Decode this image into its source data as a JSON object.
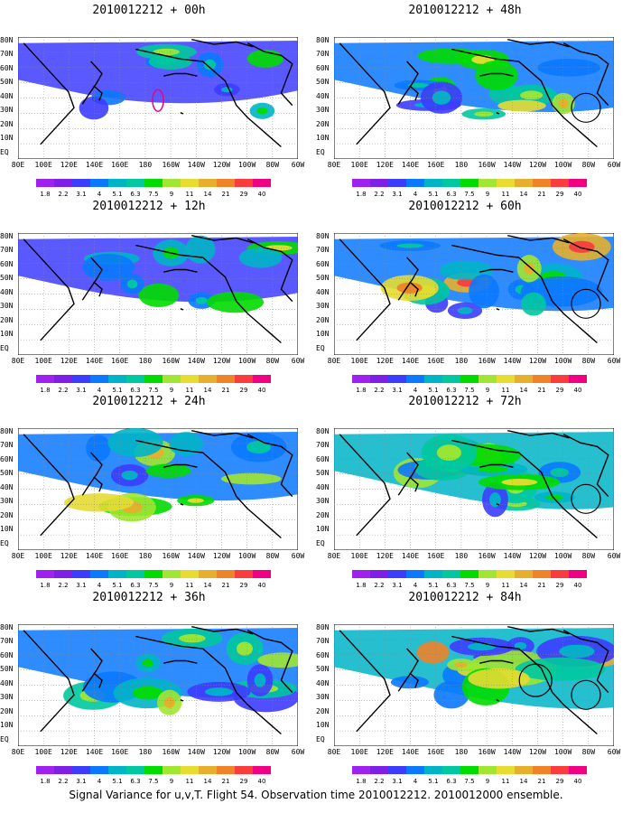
{
  "panels": [
    {
      "title": "2010012212 + 00h",
      "intensity": 0.25
    },
    {
      "title": "2010012212 + 48h",
      "intensity": 0.65
    },
    {
      "title": "2010012212 + 12h",
      "intensity": 0.4
    },
    {
      "title": "2010012212 + 60h",
      "intensity": 0.75
    },
    {
      "title": "2010012212 + 24h",
      "intensity": 0.55
    },
    {
      "title": "2010012212 + 72h",
      "intensity": 0.85
    },
    {
      "title": "2010012212 + 36h",
      "intensity": 0.6
    },
    {
      "title": "2010012212 + 84h",
      "intensity": 0.95
    }
  ],
  "lat_labels": [
    "80N",
    "70N",
    "60N",
    "50N",
    "40N",
    "30N",
    "20N",
    "10N",
    "EQ"
  ],
  "lon_labels": [
    "80E",
    "100E",
    "120E",
    "140E",
    "160E",
    "180",
    "160W",
    "140W",
    "120W",
    "100W",
    "80W",
    "60W"
  ],
  "colorbar": {
    "labels": [
      "1.8",
      "2.2",
      "3.1",
      "4",
      "5.1",
      "6.3",
      "7.5",
      "9",
      "11",
      "14",
      "21",
      "29",
      "40"
    ],
    "colors": [
      "#a020f0",
      "#7f1ee6",
      "#3c3cff",
      "#0a78ff",
      "#00b4c8",
      "#00c8a0",
      "#00dc00",
      "#a0e632",
      "#e6dc32",
      "#e6af2d",
      "#f08228",
      "#fa3c3c",
      "#f00082"
    ]
  },
  "caption": "Signal Variance for u,v,T. Flight 54. Observation time 2010012212. 2010012000 ensemble."
}
